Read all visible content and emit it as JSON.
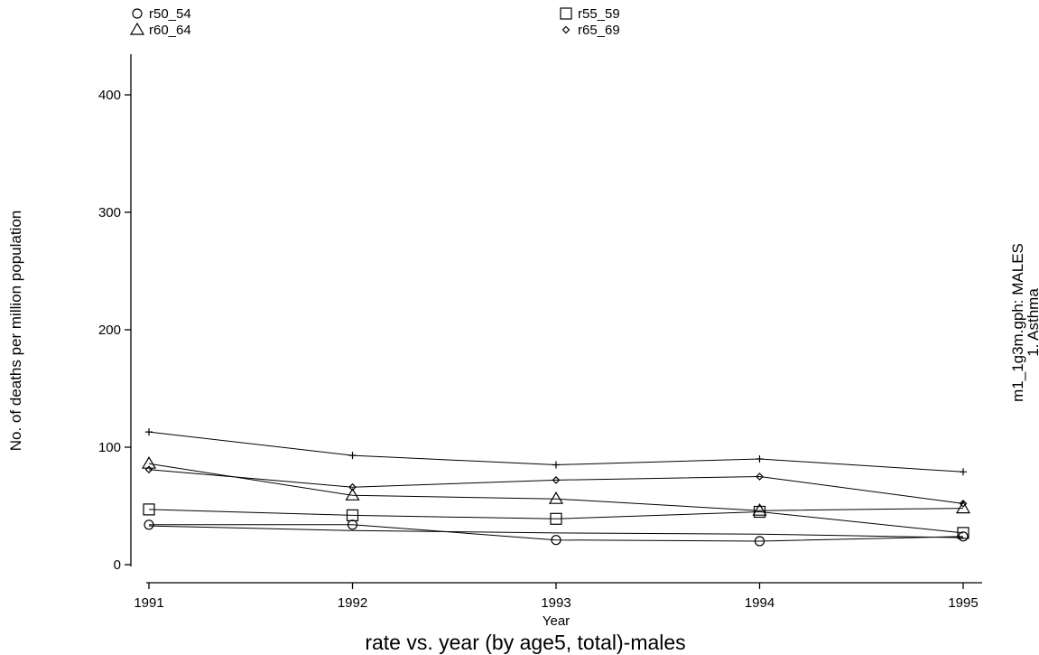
{
  "chart_data": {
    "type": "line",
    "title": "rate vs. year (by age5, total)-males",
    "xlabel": "Year",
    "ylabel": "No. of deaths per million population",
    "side_note": [
      "m1_1g3m.gph: MALES",
      "1. Asthma"
    ],
    "x": [
      1991,
      1992,
      1993,
      1994,
      1995
    ],
    "xlim": [
      1991,
      1995
    ],
    "ylim": [
      0,
      400
    ],
    "x_ticks": [
      1991,
      1992,
      1993,
      1994,
      1995
    ],
    "y_ticks": [
      0,
      100,
      200,
      300,
      400
    ],
    "grid": false,
    "legend_position": "top",
    "legend_entries": [
      {
        "name": "r50_54",
        "symbol": "circle"
      },
      {
        "name": "r55_59",
        "symbol": "square"
      },
      {
        "name": "r60_64",
        "symbol": "triangle"
      },
      {
        "name": "r65_69",
        "symbol": "diamond"
      }
    ],
    "series": [
      {
        "name": "r50_54",
        "marker": "circle",
        "values": [
          34,
          34,
          21,
          20,
          24
        ]
      },
      {
        "name": "r55_59",
        "marker": "square",
        "values": [
          47,
          42,
          39,
          45,
          27
        ]
      },
      {
        "name": "r60_64",
        "marker": "triangle",
        "values": [
          86,
          59,
          56,
          46,
          48
        ]
      },
      {
        "name": "r65_69",
        "marker": "diamond",
        "values": [
          81,
          66,
          72,
          75,
          52
        ]
      },
      {
        "marker": "plus",
        "values": [
          113,
          93,
          85,
          90,
          79
        ]
      },
      {
        "marker": "none",
        "values": [
          33,
          29,
          27,
          26,
          23
        ]
      }
    ]
  }
}
